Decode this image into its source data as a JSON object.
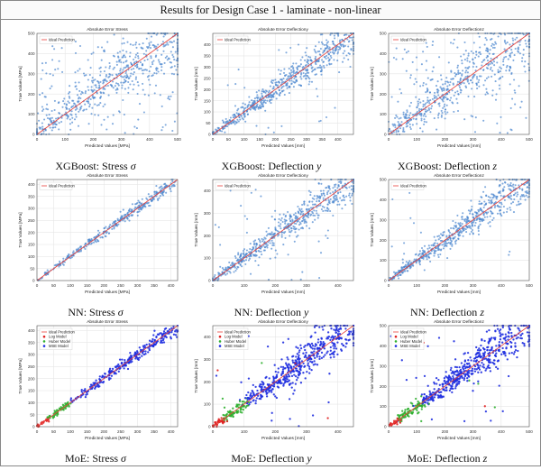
{
  "header": {
    "title": "Results for Design Case 1 - laminate - non-linear"
  },
  "colors": {
    "ideal": "#e8403a",
    "points": "#4a86cf",
    "log": "#e02020",
    "huber": "#30b030",
    "mse": "#1f2fe0",
    "grid": "#e6e6e6",
    "axis": "#555555"
  },
  "captions": [
    {
      "text": "XGBoost: Stress ",
      "sym": "σ"
    },
    {
      "text": "XGBoost: Deflection ",
      "sym": "y"
    },
    {
      "text": "XGBoost: Deflection ",
      "sym": "z"
    },
    {
      "text": "NN: Stress ",
      "sym": "σ"
    },
    {
      "text": "NN: Deflection ",
      "sym": "y"
    },
    {
      "text": "NN: Deflection ",
      "sym": "z"
    },
    {
      "text": "MoE: Stress ",
      "sym": "σ"
    },
    {
      "text": "MoE: Deflection ",
      "sym": "y"
    },
    {
      "text": "MoE: Deflection ",
      "sym": "z"
    }
  ],
  "chart_data": [
    {
      "type": "scatter",
      "title": "Absolute Error Stress",
      "xlabel": "Predicted Values [MPa]",
      "ylabel": "True Values [MPa]",
      "xlim": [
        0,
        500
      ],
      "ylim": [
        0,
        500
      ],
      "xticks": [
        0,
        100,
        200,
        300,
        400,
        500
      ],
      "yticks": [
        0,
        100,
        200,
        300,
        400,
        500
      ],
      "legend": [
        "Ideal Prediction"
      ],
      "spread": "wide",
      "grid": true
    },
    {
      "type": "scatter",
      "title": "Absolute Error Deflectiony",
      "xlabel": "Predicted Values [mm]",
      "ylabel": "True Values [mm]",
      "xlim": [
        0,
        450
      ],
      "ylim": [
        0,
        450
      ],
      "xticks": [
        0,
        50,
        100,
        150,
        200,
        250,
        300,
        350,
        400
      ],
      "yticks": [
        0,
        50,
        100,
        150,
        200,
        250,
        300,
        350,
        400
      ],
      "legend": [
        "Ideal Prediction"
      ],
      "spread": "medium",
      "grid": true
    },
    {
      "type": "scatter",
      "title": "Absolute Error Deflectionz",
      "xlabel": "Predicted Values [mm]",
      "ylabel": "True Values [mm]",
      "xlim": [
        0,
        500
      ],
      "ylim": [
        0,
        500
      ],
      "xticks": [
        0,
        100,
        200,
        300,
        400,
        500
      ],
      "yticks": [
        0,
        100,
        200,
        300,
        400,
        500
      ],
      "legend": [
        "Ideal Prediction"
      ],
      "spread": "wide",
      "grid": true
    },
    {
      "type": "scatter",
      "title": "Absolute Error Stress",
      "xlabel": "Predicted Values [MPa]",
      "ylabel": "True Values [MPa]",
      "xlim": [
        0,
        420
      ],
      "ylim": [
        0,
        420
      ],
      "xticks": [
        0,
        50,
        100,
        150,
        200,
        250,
        300,
        350,
        400
      ],
      "yticks": [
        0,
        50,
        100,
        150,
        200,
        250,
        300,
        350,
        400
      ],
      "legend": [
        "Ideal Prediction"
      ],
      "spread": "tight",
      "grid": true
    },
    {
      "type": "scatter",
      "title": "Absolute Error Deflectiony",
      "xlabel": "Predicted Values [mm]",
      "ylabel": "True Values [mm]",
      "xlim": [
        0,
        450
      ],
      "ylim": [
        0,
        450
      ],
      "xticks": [
        0,
        100,
        200,
        300,
        400
      ],
      "yticks": [
        0,
        100,
        200,
        300,
        400
      ],
      "legend": [
        "Ideal Prediction"
      ],
      "spread": "medium",
      "grid": true
    },
    {
      "type": "scatter",
      "title": "Absolute Error Deflectionz",
      "xlabel": "Predicted Values [mm]",
      "ylabel": "True Values [mm]",
      "xlim": [
        0,
        500
      ],
      "ylim": [
        0,
        500
      ],
      "xticks": [
        0,
        100,
        200,
        300,
        400,
        500
      ],
      "yticks": [
        0,
        100,
        200,
        300,
        400,
        500
      ],
      "legend": [
        "Ideal Prediction"
      ],
      "spread": "medium",
      "grid": true
    },
    {
      "type": "scatter",
      "title": "Absolute Error Stress",
      "xlabel": "Predicted Values [MPa]",
      "ylabel": "True Values [MPa]",
      "xlim": [
        0,
        420
      ],
      "ylim": [
        0,
        420
      ],
      "xticks": [
        0,
        50,
        100,
        150,
        200,
        250,
        300,
        350,
        400
      ],
      "yticks": [
        0,
        50,
        100,
        150,
        200,
        250,
        300,
        350,
        400
      ],
      "legend": [
        "Ideal Prediction",
        "Log Model",
        "Huber Model",
        "MSE Model"
      ],
      "spread": "tight",
      "grid": true,
      "moe": true
    },
    {
      "type": "scatter",
      "title": "Absolute Error Deflectiony",
      "xlabel": "Predicted Values [mm]",
      "ylabel": "True Values [mm]",
      "xlim": [
        0,
        450
      ],
      "ylim": [
        0,
        450
      ],
      "xticks": [
        0,
        100,
        200,
        300,
        400
      ],
      "yticks": [
        0,
        100,
        200,
        300,
        400
      ],
      "legend": [
        "Ideal Prediction",
        "Log Model",
        "Huber Model",
        "MSE Model"
      ],
      "spread": "medium",
      "grid": true,
      "moe": true
    },
    {
      "type": "scatter",
      "title": "Absolute Error Deflectionz",
      "xlabel": "Predicted Values [mm]",
      "ylabel": "True Values [mm]",
      "xlim": [
        0,
        500
      ],
      "ylim": [
        0,
        500
      ],
      "xticks": [
        0,
        100,
        200,
        300,
        400,
        500
      ],
      "yticks": [
        0,
        100,
        200,
        300,
        400,
        500
      ],
      "legend": [
        "Ideal Prediction",
        "Log Model",
        "Huber Model",
        "MSE Model"
      ],
      "spread": "medium",
      "grid": true,
      "moe": true
    }
  ]
}
